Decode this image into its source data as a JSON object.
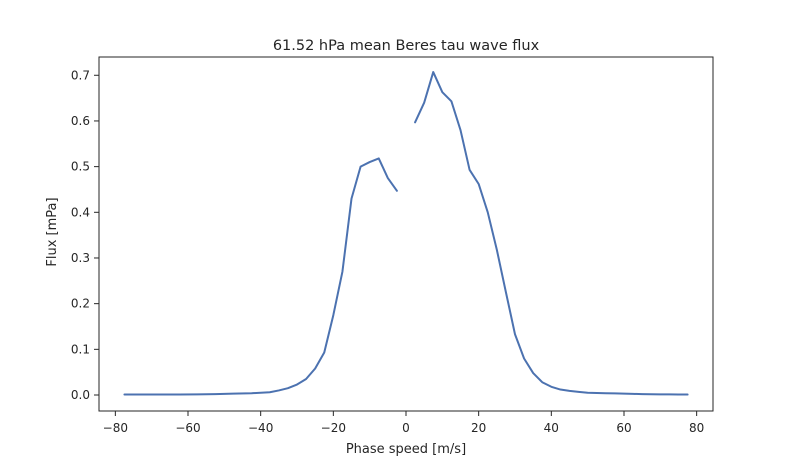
{
  "chart_data": {
    "type": "line",
    "title": "61.52 hPa mean Beres tau wave flux",
    "xlabel": "Phase speed [m/s]",
    "ylabel": "Flux [mPa]",
    "xlim": [
      -84.5,
      84.5
    ],
    "ylim": [
      -0.035,
      0.74
    ],
    "xticks": [
      -80,
      -60,
      -40,
      -20,
      0,
      20,
      40,
      60,
      80
    ],
    "xtick_labels": [
      "−80",
      "−60",
      "−40",
      "−20",
      "0",
      "20",
      "40",
      "60",
      "80"
    ],
    "yticks": [
      0.0,
      0.1,
      0.2,
      0.3,
      0.4,
      0.5,
      0.6,
      0.7
    ],
    "ytick_labels": [
      "0.0",
      "0.1",
      "0.2",
      "0.3",
      "0.4",
      "0.5",
      "0.6",
      "0.7"
    ],
    "grid": false,
    "line_color": "#4c72b0",
    "series": [
      {
        "segments": [
          {
            "x": [
              -77.5,
              -72.5,
              -67.5,
              -62.5,
              -57.5,
              -52.5,
              -47.5,
              -42.5,
              -37.5,
              -35,
              -32.5,
              -30,
              -27.5,
              -25,
              -22.5,
              -20,
              -17.5,
              -15,
              -12.5,
              -10,
              -7.5,
              -5,
              -2.5
            ],
            "y": [
              0.001,
              0.001,
              0.001,
              0.001,
              0.0015,
              0.002,
              0.003,
              0.004,
              0.006,
              0.01,
              0.015,
              0.023,
              0.035,
              0.058,
              0.093,
              0.175,
              0.27,
              0.43,
              0.5,
              0.51,
              0.518,
              0.475,
              0.447
            ]
          },
          {
            "x": [
              2.5,
              5,
              7.5,
              10,
              12.5,
              15,
              17.5,
              20,
              22.5,
              25,
              27.5,
              30,
              32.5,
              35,
              37.5,
              40,
              42.5,
              45,
              47.5,
              50,
              52.5,
              55,
              57.5,
              60,
              62.5,
              65,
              67.5,
              70,
              72.5,
              75,
              77.5
            ],
            "y": [
              0.597,
              0.64,
              0.707,
              0.663,
              0.643,
              0.58,
              0.493,
              0.462,
              0.4,
              0.318,
              0.225,
              0.133,
              0.08,
              0.048,
              0.028,
              0.018,
              0.012,
              0.009,
              0.007,
              0.005,
              0.0045,
              0.004,
              0.0035,
              0.003,
              0.0025,
              0.002,
              0.0018,
              0.0015,
              0.0013,
              0.0012,
              0.001
            ]
          }
        ]
      }
    ]
  }
}
